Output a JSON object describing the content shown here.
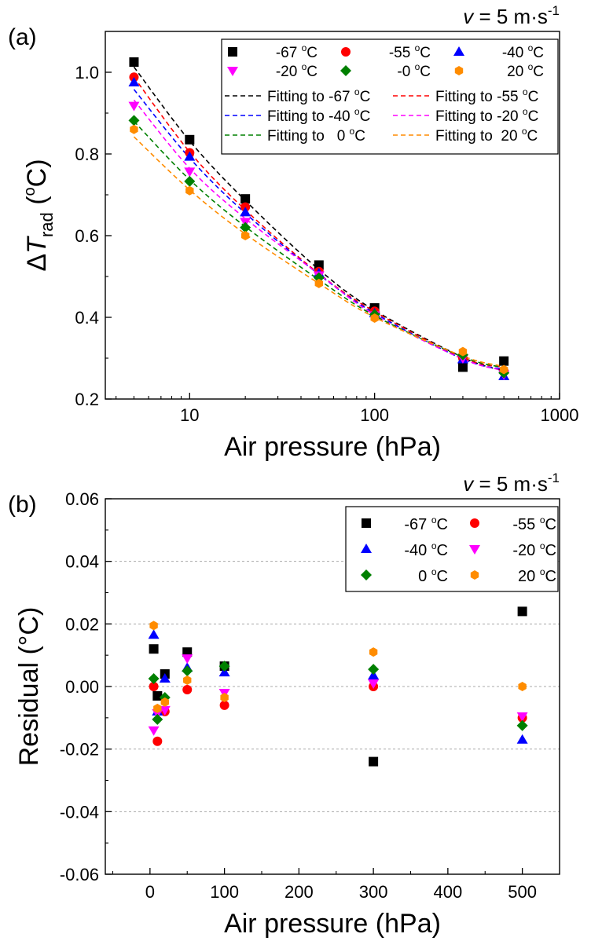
{
  "chart_data": [
    {
      "panel_label": "(a)",
      "type": "scatter",
      "annotation": "v = 5 m·s",
      "annotation_sup": "-1",
      "xlabel": "Air pressure (hPa)",
      "ylabel_prefix": "ΔT",
      "ylabel_sub": "rad",
      "ylabel_suffix": " (°C)",
      "xscale": "log",
      "xlim": [
        3.5,
        1000
      ],
      "ylim": [
        0.2,
        1.1
      ],
      "x_ticks": [
        10,
        100,
        1000
      ],
      "x_tick_labels": [
        "10",
        "100",
        "1000"
      ],
      "y_ticks": [
        0.2,
        0.4,
        0.6,
        0.8,
        1.0
      ],
      "y_tick_labels": [
        "0.2",
        "0.4",
        "0.6",
        "0.8",
        "1.0"
      ],
      "grid": false,
      "legend_position": "top-right",
      "legend_columns": 3,
      "x": [
        5,
        10,
        20,
        50,
        100,
        300,
        500
      ],
      "series": [
        {
          "name": "-67 °C",
          "marker": "square",
          "color": "#000000",
          "y": [
            1.025,
            0.835,
            0.69,
            0.528,
            0.423,
            0.278,
            0.293
          ]
        },
        {
          "name": "-55 °C",
          "marker": "circle",
          "color": "#ff0000",
          "y": [
            0.988,
            0.803,
            0.67,
            0.512,
            0.415,
            0.3,
            0.268
          ]
        },
        {
          "name": "-40 °C",
          "marker": "triangle-up",
          "color": "#0000ff",
          "y": [
            0.975,
            0.793,
            0.657,
            0.508,
            0.41,
            0.297,
            0.256
          ]
        },
        {
          "name": "-20 °C",
          "marker": "triangle-down",
          "color": "#ff00ff",
          "y": [
            0.918,
            0.757,
            0.634,
            0.503,
            0.405,
            0.3,
            0.26
          ]
        },
        {
          "name": "-0 °C",
          "marker": "diamond",
          "color": "#008000",
          "y": [
            0.882,
            0.733,
            0.62,
            0.497,
            0.407,
            0.308,
            0.264
          ]
        },
        {
          "name": "20 °C",
          "marker": "hexagon",
          "color": "#ff8c00",
          "y": [
            0.86,
            0.71,
            0.6,
            0.483,
            0.398,
            0.316,
            0.272
          ]
        }
      ],
      "fits": [
        {
          "name": "Fitting to -67 °C",
          "color": "#000000",
          "y": [
            1.013,
            0.832,
            0.686,
            0.517,
            0.417,
            0.302,
            0.269
          ]
        },
        {
          "name": "Fitting to -55 °C",
          "color": "#ff0000",
          "y": [
            0.988,
            0.805,
            0.663,
            0.507,
            0.414,
            0.301,
            0.278
          ]
        },
        {
          "name": "Fitting to -40 °C",
          "color": "#0000ff",
          "y": [
            0.958,
            0.79,
            0.655,
            0.505,
            0.41,
            0.298,
            0.273
          ]
        },
        {
          "name": "Fitting to -20 °C",
          "color": "#ff00ff",
          "y": [
            0.932,
            0.765,
            0.642,
            0.506,
            0.406,
            0.298,
            0.27
          ]
        },
        {
          "name": "Fitting to   0 °C",
          "color": "#008000",
          "y": [
            0.88,
            0.737,
            0.622,
            0.492,
            0.404,
            0.303,
            0.277
          ]
        },
        {
          "name": "Fitting to  20 °C",
          "color": "#ff8c00",
          "y": [
            0.842,
            0.712,
            0.604,
            0.483,
            0.4,
            0.305,
            0.28
          ]
        }
      ]
    },
    {
      "panel_label": "(b)",
      "type": "scatter",
      "annotation": "v = 5 m·s",
      "annotation_sup": "-1",
      "xlabel": "Air pressure (hPa)",
      "ylabel": "Residual (°C)",
      "xscale": "linear",
      "xlim": [
        -60,
        550
      ],
      "ylim": [
        -0.06,
        0.06
      ],
      "x_ticks": [
        0,
        100,
        200,
        300,
        400,
        500
      ],
      "x_tick_labels": [
        "0",
        "100",
        "200",
        "300",
        "400",
        "500"
      ],
      "y_ticks": [
        -0.06,
        -0.04,
        -0.02,
        0.0,
        0.02,
        0.04,
        0.06
      ],
      "y_tick_labels": [
        "-0.06",
        "-0.04",
        "-0.02",
        "0.00",
        "0.02",
        "0.04",
        "0.06"
      ],
      "grid": true,
      "legend_position": "top-right",
      "legend_columns": 2,
      "x": [
        5,
        10,
        20,
        50,
        100,
        300,
        500
      ],
      "series": [
        {
          "name": "-67 °C",
          "marker": "square",
          "color": "#000000",
          "y": [
            0.012,
            -0.003,
            0.004,
            0.011,
            0.0065,
            -0.024,
            0.024
          ]
        },
        {
          "name": "-55 °C",
          "marker": "circle",
          "color": "#ff0000",
          "y": [
            0.0,
            -0.0175,
            -0.008,
            -0.001,
            -0.006,
            0.0,
            -0.01
          ]
        },
        {
          "name": "-40 °C",
          "marker": "triangle-up",
          "color": "#0000ff",
          "y": [
            0.0165,
            -0.008,
            0.0025,
            0.006,
            0.0045,
            0.0035,
            -0.017
          ]
        },
        {
          "name": "-20 °C",
          "marker": "triangle-down",
          "color": "#ff00ff",
          "y": [
            -0.014,
            -0.0085,
            -0.0075,
            0.009,
            -0.002,
            0.001,
            -0.0095
          ]
        },
        {
          "name": "0 °C",
          "marker": "diamond",
          "color": "#008000",
          "y": [
            0.0025,
            -0.0105,
            -0.0035,
            0.005,
            0.0065,
            0.0055,
            -0.0125
          ]
        },
        {
          "name": "20 °C",
          "marker": "hexagon",
          "color": "#ff8c00",
          "y": [
            0.0195,
            -0.007,
            -0.005,
            0.002,
            -0.0035,
            0.011,
            0.0
          ]
        }
      ]
    }
  ]
}
